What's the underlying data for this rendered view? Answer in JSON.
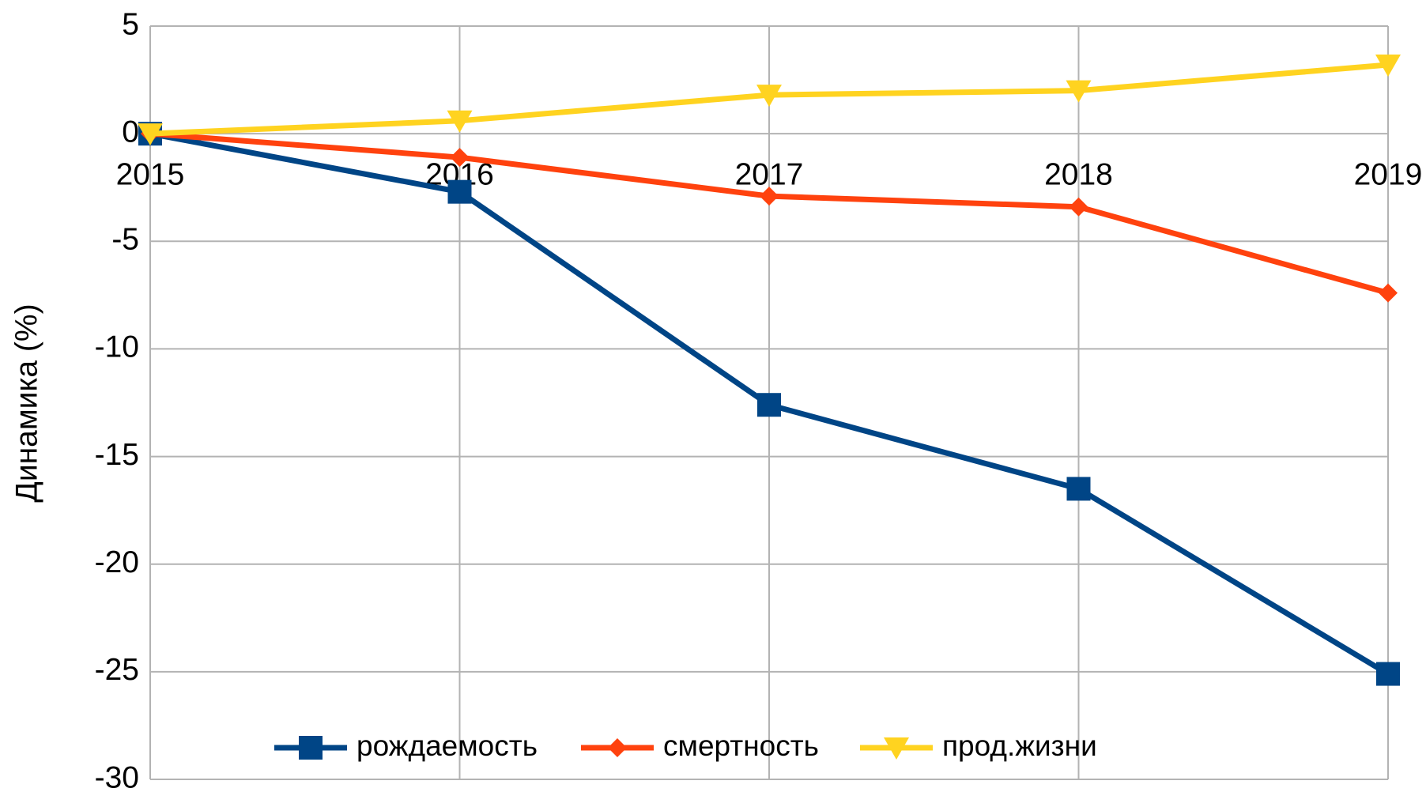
{
  "chart_data": {
    "type": "line",
    "y_axis_label": "Динамика (%)",
    "categories": [
      "2015",
      "2016",
      "2017",
      "2018",
      "2019"
    ],
    "series": [
      {
        "name": "рождаемость",
        "color": "#004586",
        "marker": "square",
        "values": [
          0,
          -2.7,
          -12.6,
          -16.5,
          -25.1
        ]
      },
      {
        "name": "смертность",
        "color": "#ff420e",
        "marker": "diamond",
        "values": [
          0,
          -1.1,
          -2.9,
          -3.4,
          -7.4
        ]
      },
      {
        "name": "прод.жизни",
        "color": "#ffd320",
        "marker": "triangle-down",
        "values": [
          0,
          0.6,
          1.8,
          2.0,
          3.2
        ]
      }
    ],
    "ylim": [
      -30,
      5
    ],
    "yticks": [
      5,
      0,
      -5,
      -10,
      -15,
      -20,
      -25,
      -30
    ],
    "grid": true,
    "legend": "bottom"
  }
}
